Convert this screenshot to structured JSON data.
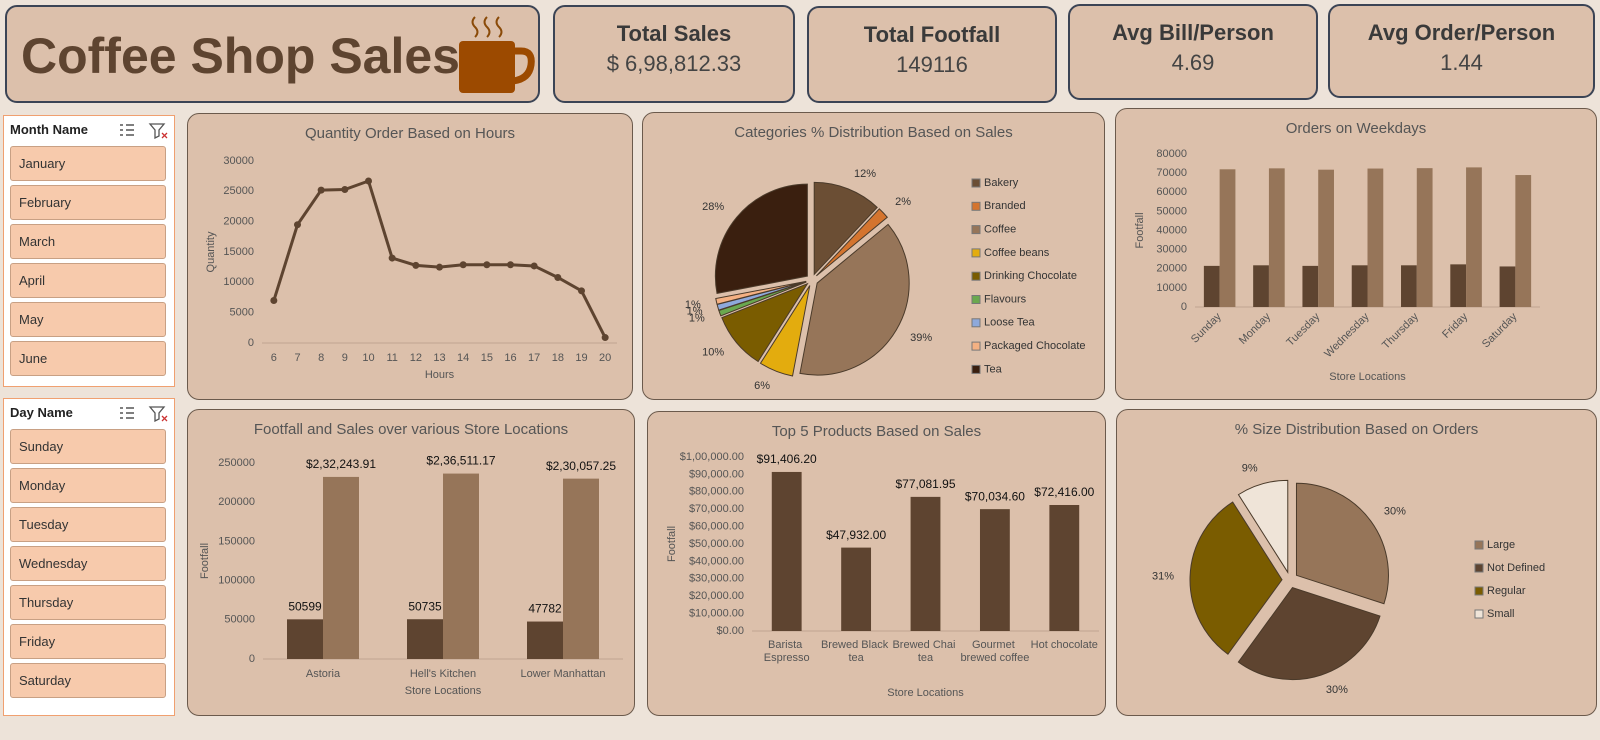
{
  "header": {
    "title": "Coffee Shop Sales"
  },
  "kpis": [
    {
      "label": "Total Sales",
      "value": "$ 6,98,812.33"
    },
    {
      "label": "Total Footfall",
      "value": 149116
    },
    {
      "label": "Avg Bill/Person",
      "value": 4.69
    },
    {
      "label": "Avg Order/Person",
      "value": 1.44
    }
  ],
  "slicers": [
    {
      "title": "Month Name",
      "items": [
        "January",
        "February",
        "March",
        "April",
        "May",
        "June"
      ]
    },
    {
      "title": "Day Name",
      "items": [
        "Sunday",
        "Monday",
        "Tuesday",
        "Wednesday",
        "Thursday",
        "Friday",
        "Saturday"
      ]
    }
  ],
  "chart_data": [
    {
      "type": "line",
      "title": "Quantity Order Based on Hours",
      "categories": [
        "6",
        "7",
        "8",
        "9",
        "10",
        "11",
        "12",
        "13",
        "14",
        "15",
        "16",
        "17",
        "18",
        "19",
        "20"
      ],
      "values": [
        7000,
        19500,
        25200,
        25300,
        26700,
        14000,
        12800,
        12500,
        12900,
        12900,
        12900,
        12700,
        10800,
        8600,
        900
      ],
      "color": "#5e4430",
      "x_label": "Hours",
      "y_label": "Quantity",
      "ylim": [
        0,
        30000
      ],
      "yticks": [
        0,
        5000,
        10000,
        15000,
        20000,
        25000,
        30000
      ],
      "grid": false
    },
    {
      "type": "pie",
      "title": "Categories  % Distribution Based on Sales",
      "categories": [
        "Bakery",
        "Branded",
        "Coffee",
        "Coffee beans",
        "Drinking Chocolate",
        "Flavours",
        "Loose Tea",
        "Packaged Chocolate",
        "Tea"
      ],
      "values": [
        12,
        2,
        39,
        6,
        10,
        1,
        1,
        1,
        28
      ],
      "value_labels": [
        "12%",
        "2%",
        "39%",
        "6%",
        "10%",
        "1%",
        "1%",
        "1%",
        "28%"
      ],
      "colors": [
        "#6b4e34",
        "#d4742e",
        "#967559",
        "#e3ac0e",
        "#7a5c00",
        "#6aa84f",
        "#8ea9db",
        "#f4b183",
        "#3a1f0f"
      ],
      "legend": "right"
    },
    {
      "type": "bar",
      "title": "Orders on Weekdays",
      "categories": [
        "Sunday",
        "Monday",
        "Tuesday",
        "Wednesday",
        "Thursday",
        "Friday",
        "Saturday"
      ],
      "series": [
        {
          "color": "#5e4430",
          "values": [
            21500,
            21800,
            21500,
            21800,
            21800,
            22300,
            21200
          ]
        },
        {
          "color": "#967559",
          "values": [
            72000,
            72500,
            71800,
            72400,
            72600,
            73000,
            69000
          ]
        }
      ],
      "x_label": "Store  Locations",
      "y_label": "Footfall",
      "ylim": [
        0,
        80000
      ],
      "yticks": [
        0,
        10000,
        20000,
        30000,
        40000,
        50000,
        60000,
        70000,
        80000
      ],
      "grid": false,
      "data_labels": false
    },
    {
      "type": "bar",
      "title": "Footfall and Sales over various Store Locations",
      "categories": [
        "Astoria",
        "Hell's Kitchen",
        "Lower Manhattan"
      ],
      "series": [
        {
          "color": "#5e4430",
          "values": [
            50599,
            50735,
            47782
          ]
        },
        {
          "color": "#967559",
          "values": [
            232243.91,
            236511.17,
            230057.25
          ],
          "value_labels": [
            "$2,32,243.91",
            "$2,36,511.17",
            "$2,30,057.25"
          ]
        }
      ],
      "x_label": "Store  Locations",
      "y_label": "Footfall",
      "ylim": [
        0,
        250000
      ],
      "yticks": [
        0,
        50000,
        100000,
        150000,
        200000,
        250000
      ],
      "grid": false,
      "data_labels": true
    },
    {
      "type": "bar",
      "title": "Top 5 Products Based on Sales",
      "categories": [
        "Barista Espresso",
        "Brewed Black tea",
        "Brewed Chai tea",
        "Gourmet brewed coffee",
        "Hot chocolate"
      ],
      "values": [
        91406.2,
        47932.0,
        77081.95,
        70034.6,
        72416.0
      ],
      "value_labels": [
        "$91,406.20",
        "$47,932.00",
        "$77,081.95",
        "$70,034.60",
        "$72,416.00"
      ],
      "color": "#5e4430",
      "x_label": "Store  Locations",
      "y_label": "Footfall",
      "ylim": [
        0,
        100000
      ],
      "yticks": [
        {
          "value": 0,
          "label": "$0.00"
        },
        {
          "value": 10000,
          "label": "$10,000.00"
        },
        {
          "value": 20000,
          "label": "$20,000.00"
        },
        {
          "value": 30000,
          "label": "$30,000.00"
        },
        {
          "value": 40000,
          "label": "$40,000.00"
        },
        {
          "value": 50000,
          "label": "$50,000.00"
        },
        {
          "value": 60000,
          "label": "$60,000.00"
        },
        {
          "value": 70000,
          "label": "$70,000.00"
        },
        {
          "value": 80000,
          "label": "$80,000.00"
        },
        {
          "value": 90000,
          "label": "$90,000.00"
        },
        {
          "value": 100000,
          "label": "$1,00,000.00"
        }
      ],
      "grid": false,
      "data_labels": true
    },
    {
      "type": "pie",
      "title": "% Size Distribution Based on Orders",
      "categories": [
        "Large",
        "Not Defined",
        "Regular",
        "Small"
      ],
      "values": [
        30,
        30,
        31,
        9
      ],
      "value_labels": [
        "30%",
        "30%",
        "31%",
        "9%"
      ],
      "colors": [
        "#967559",
        "#5e4430",
        "#7a5c00",
        "#efe4d8"
      ],
      "legend": "right"
    }
  ]
}
